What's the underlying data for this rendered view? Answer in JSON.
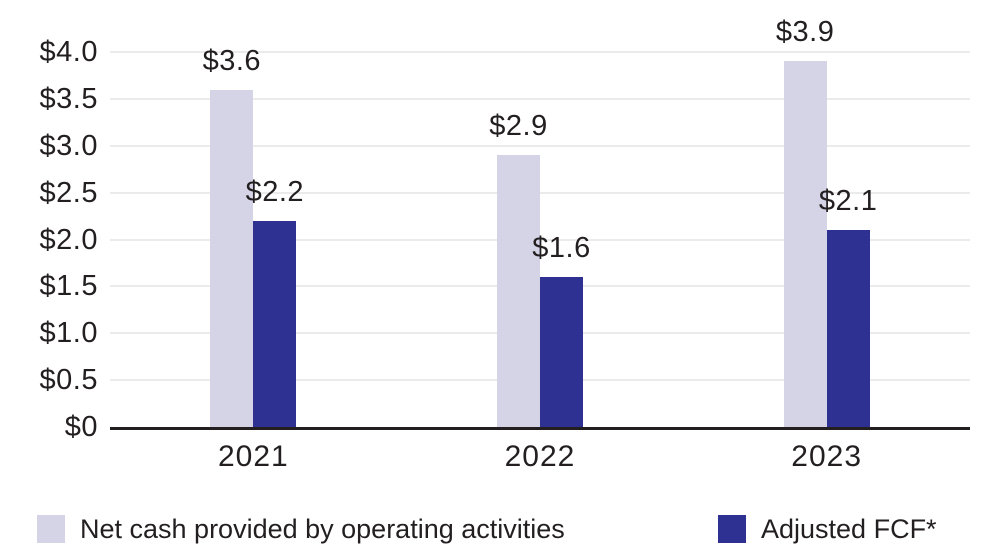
{
  "chart_data": {
    "type": "bar",
    "categories": [
      "2021",
      "2022",
      "2023"
    ],
    "series": [
      {
        "name": "Net cash provided by operating activities",
        "color": "#d5d4e6",
        "values": [
          3.6,
          2.9,
          3.9
        ],
        "value_labels": [
          "$3.6",
          "$2.9",
          "$3.9"
        ]
      },
      {
        "name": "Adjusted FCF*",
        "color": "#2e3191",
        "values": [
          2.2,
          1.6,
          2.1
        ],
        "value_labels": [
          "$2.2",
          "$1.6",
          "$2.1"
        ]
      }
    ],
    "y_axis": {
      "min": 0,
      "max": 4.0,
      "tick_step": 0.5,
      "ticks": [
        {
          "value": 0.0,
          "label": "$0"
        },
        {
          "value": 0.5,
          "label": "$0.5"
        },
        {
          "value": 1.0,
          "label": "$1.0"
        },
        {
          "value": 1.5,
          "label": "$1.5"
        },
        {
          "value": 2.0,
          "label": "$2.0"
        },
        {
          "value": 2.5,
          "label": "$2.5"
        },
        {
          "value": 3.0,
          "label": "$3.0"
        },
        {
          "value": 3.5,
          "label": "$3.5"
        },
        {
          "value": 4.0,
          "label": "$4.0"
        }
      ]
    },
    "grid": true,
    "legend_position": "bottom"
  },
  "colors": {
    "text": "#231f20",
    "gridline": "#ebebeb",
    "axis_line": "#231f20",
    "background": "#ffffff",
    "series_light": "#d5d4e6",
    "series_dark": "#2e3191"
  }
}
